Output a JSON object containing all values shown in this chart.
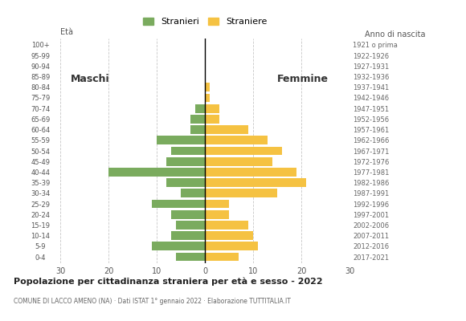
{
  "age_groups": [
    "0-4",
    "5-9",
    "10-14",
    "15-19",
    "20-24",
    "25-29",
    "30-34",
    "35-39",
    "40-44",
    "45-49",
    "50-54",
    "55-59",
    "60-64",
    "65-69",
    "70-74",
    "75-79",
    "80-84",
    "85-89",
    "90-94",
    "95-99",
    "100+"
  ],
  "birth_years": [
    "2017-2021",
    "2012-2016",
    "2007-2011",
    "2002-2006",
    "1997-2001",
    "1992-1996",
    "1987-1991",
    "1982-1986",
    "1977-1981",
    "1972-1976",
    "1967-1971",
    "1962-1966",
    "1957-1961",
    "1952-1956",
    "1947-1951",
    "1942-1946",
    "1937-1941",
    "1932-1936",
    "1927-1931",
    "1922-1926",
    "1921 o prima"
  ],
  "males": [
    6,
    11,
    7,
    6,
    7,
    11,
    5,
    8,
    20,
    8,
    7,
    10,
    3,
    3,
    2,
    0,
    0,
    0,
    0,
    0,
    0
  ],
  "females": [
    7,
    11,
    10,
    9,
    5,
    5,
    15,
    21,
    19,
    14,
    16,
    13,
    9,
    3,
    3,
    1,
    1,
    0,
    0,
    0,
    0
  ],
  "male_color": "#7aab5e",
  "female_color": "#f5c242",
  "title": "Popolazione per cittadinanza straniera per età e sesso - 2022",
  "subtitle": "COMUNE DI LACCO AMENO (NA) · Dati ISTAT 1° gennaio 2022 · Elaborazione TUTTITALIA.IT",
  "legend_male": "Stranieri",
  "legend_female": "Straniere",
  "label_eta": "Età",
  "label_anno": "Anno di nascita",
  "label_maschi": "Maschi",
  "label_femmine": "Femmine",
  "xlim": 30,
  "bg_color": "#ffffff",
  "grid_color": "#c8c8c8",
  "bar_height": 0.82
}
